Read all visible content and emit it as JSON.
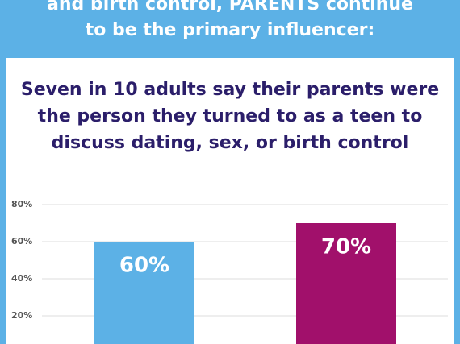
{
  "header": {
    "lines": [
      "and birth control, PARENTS continue",
      "to be the primary influencer:"
    ]
  },
  "chart_data": {
    "type": "bar",
    "title_lines": [
      "Seven in 10 adults say their parents were",
      "the person they turned to as a teen to",
      "discuss dating, sex, or birth control"
    ],
    "categories": [
      null,
      null
    ],
    "values": [
      60,
      70
    ],
    "value_labels": [
      "60%",
      "70%"
    ],
    "colors": [
      "#5cb1e6",
      "#a1106b"
    ],
    "ylim": [
      0,
      80
    ],
    "yticks": [
      {
        "value": 20,
        "label": "20%"
      },
      {
        "value": 40,
        "label": "40%"
      },
      {
        "value": 60,
        "label": "60%"
      },
      {
        "value": 80,
        "label": "80%"
      }
    ],
    "grid": true
  }
}
